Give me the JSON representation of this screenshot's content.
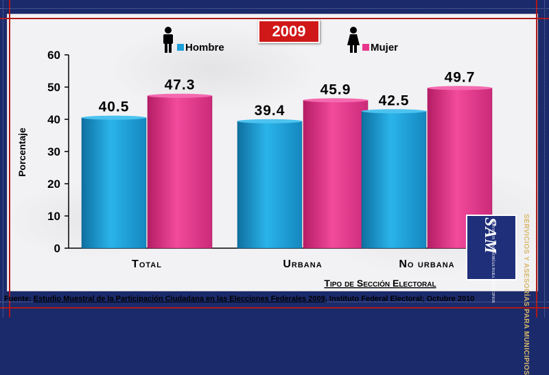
{
  "badge": {
    "year": "2009"
  },
  "legend": [
    {
      "label": "Hombre",
      "color": "#1fa0d8",
      "icon": "man-icon"
    },
    {
      "label": "Mujer",
      "color": "#e8368c",
      "icon": "woman-icon"
    }
  ],
  "source": {
    "prefix": "Fuente:",
    "title": "Estudio Muestral de la Participación Ciudadana en las Elecciones Federales 2009",
    "suffix": ", Instituto Federal Electoral; Octubre 2010"
  },
  "logo": {
    "mark": "SAM",
    "small": "SERVICIOS Y ASESORÍAS PARA MUNICIPIOS",
    "vertical": "SERVICIOS Y ASESORÍAS PARA MUNICIPIOS"
  },
  "chart_data": {
    "type": "bar",
    "categories": [
      "Total",
      "Urbana",
      "No urbana"
    ],
    "series": [
      {
        "name": "Hombre",
        "values": [
          40.5,
          39.4,
          42.5
        ],
        "color": "#1fa0d8"
      },
      {
        "name": "Mujer",
        "values": [
          47.3,
          45.9,
          49.7
        ],
        "color": "#e8368c"
      }
    ],
    "title": "2009",
    "xlabel": "Tipo de Sección Electoral",
    "ylabel": "Porcentaje",
    "ylim": [
      0,
      60
    ],
    "yticks": [
      0,
      10,
      20,
      30,
      40,
      50,
      60
    ],
    "grid": false,
    "legend_position": "top"
  }
}
